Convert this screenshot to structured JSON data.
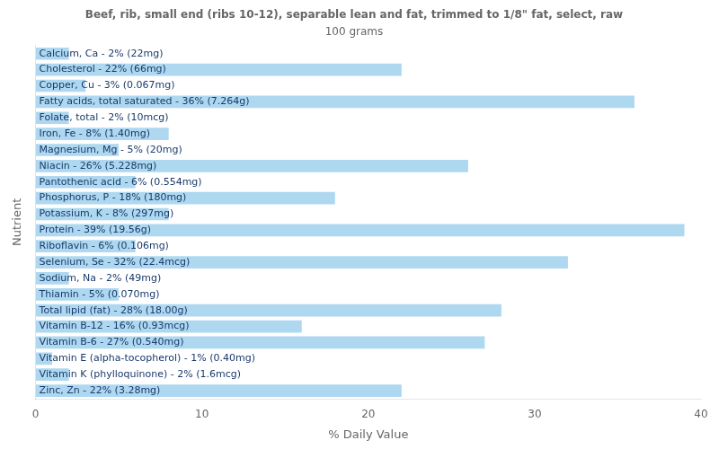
{
  "chart_data": {
    "type": "bar",
    "orientation": "horizontal",
    "title": "Beef, rib, small end (ribs 10-12), separable lean and fat, trimmed to 1/8\" fat, select, raw",
    "subtitle": "100 grams",
    "x_label": "% Daily Value",
    "y_label": "Nutrient",
    "categories": [
      "Calcium, Ca - 2% (22mg)",
      "Cholesterol - 22% (66mg)",
      "Copper, Cu - 3% (0.067mg)",
      "Fatty acids, total saturated - 36% (7.264g)",
      "Folate, total - 2% (10mcg)",
      "Iron, Fe - 8% (1.40mg)",
      "Magnesium, Mg - 5% (20mg)",
      "Niacin - 26% (5.228mg)",
      "Pantothenic acid - 6% (0.554mg)",
      "Phosphorus, P - 18% (180mg)",
      "Potassium, K - 8% (297mg)",
      "Protein - 39% (19.56g)",
      "Riboflavin - 6% (0.106mg)",
      "Selenium, Se - 32% (22.4mcg)",
      "Sodium, Na - 2% (49mg)",
      "Thiamin - 5% (0.070mg)",
      "Total lipid (fat) - 28% (18.00g)",
      "Vitamin B-12 - 16% (0.93mcg)",
      "Vitamin B-6 - 27% (0.540mg)",
      "Vitamin E (alpha-tocopherol) - 1% (0.40mg)",
      "Vitamin K (phylloquinone) - 2% (1.6mcg)",
      "Zinc, Zn - 22% (3.28mg)"
    ],
    "values": [
      2,
      22,
      3,
      36,
      2,
      8,
      5,
      26,
      6,
      18,
      8,
      39,
      6,
      32,
      2,
      5,
      28,
      16,
      27,
      1,
      2,
      22
    ],
    "color": "#add8f0",
    "xlim": [
      0,
      40
    ],
    "xticks": [
      0,
      10,
      20,
      30,
      40
    ],
    "grid": false,
    "tick_labels": "x"
  }
}
